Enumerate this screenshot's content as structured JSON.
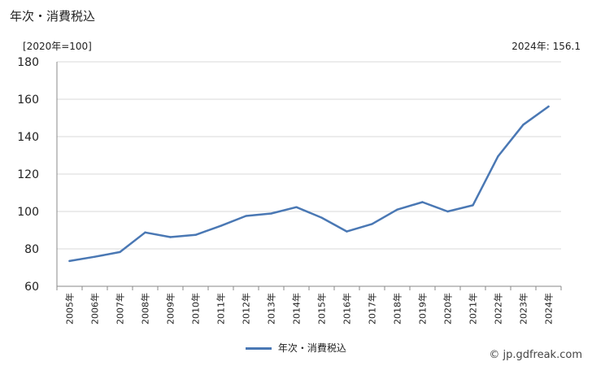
{
  "title": "年次・消費税込",
  "unit_label": "[2020年=100]",
  "latest_label": "2024年: 156.1",
  "credit": "© jp.gdfreak.com",
  "colors": {
    "line": "#4a78b4",
    "grid": "#d9d9d9",
    "axis": "#888888"
  },
  "chart_data": {
    "type": "line",
    "title": "年次・消費税込",
    "ylabel": "[2020年=100]",
    "xlabel": "",
    "ylim": [
      60,
      180
    ],
    "yticks": [
      60,
      80,
      100,
      120,
      140,
      160,
      180
    ],
    "grid": true,
    "legend_position": "bottom",
    "categories": [
      "2005年",
      "2006年",
      "2007年",
      "2008年",
      "2009年",
      "2010年",
      "2011年",
      "2012年",
      "2013年",
      "2014年",
      "2015年",
      "2016年",
      "2017年",
      "2018年",
      "2019年",
      "2020年",
      "2021年",
      "2022年",
      "2023年",
      "2024年"
    ],
    "series": [
      {
        "name": "年次・消費税込",
        "values": [
          73.5,
          75.8,
          78.3,
          88.8,
          86.3,
          87.5,
          92.3,
          97.6,
          98.9,
          102.3,
          96.7,
          89.3,
          93.3,
          101.0,
          105.0,
          100.0,
          103.3,
          129.5,
          146.4,
          156.1
        ]
      }
    ]
  }
}
